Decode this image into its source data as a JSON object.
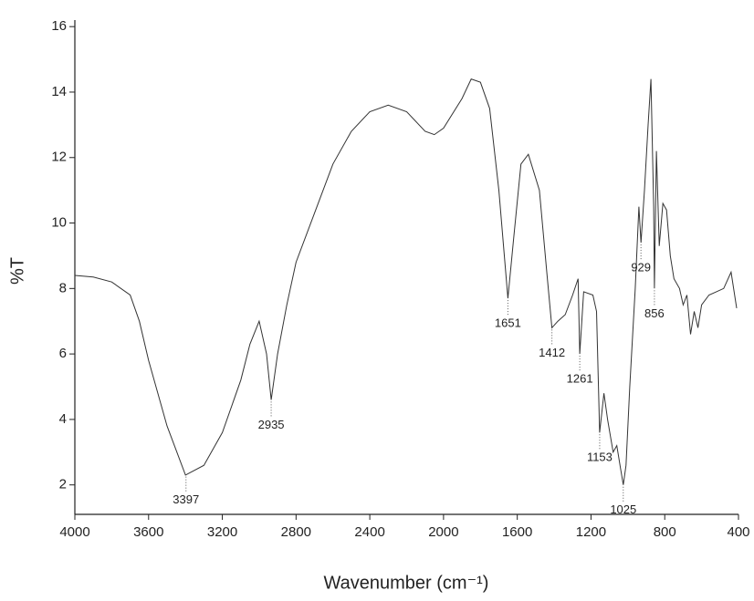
{
  "chart_data": {
    "type": "line",
    "xlabel": "Wavenumber (cm⁻¹)",
    "ylabel": "%T",
    "color": "#333333",
    "x": [
      4000,
      3900,
      3800,
      3700,
      3650,
      3600,
      3500,
      3400,
      3300,
      3200,
      3100,
      3050,
      3000,
      2960,
      2935,
      2900,
      2850,
      2800,
      2700,
      2600,
      2500,
      2400,
      2300,
      2200,
      2100,
      2050,
      2000,
      1900,
      1850,
      1800,
      1750,
      1700,
      1670,
      1651,
      1620,
      1580,
      1540,
      1480,
      1440,
      1412,
      1380,
      1340,
      1300,
      1270,
      1261,
      1240,
      1190,
      1170,
      1153,
      1130,
      1110,
      1080,
      1060,
      1040,
      1025,
      1010,
      990,
      960,
      940,
      929,
      910,
      890,
      875,
      860,
      856,
      845,
      830,
      810,
      790,
      770,
      750,
      720,
      700,
      680,
      660,
      640,
      620,
      600,
      560,
      520,
      480,
      440,
      410
    ],
    "values": [
      8.4,
      8.35,
      8.2,
      7.8,
      7.0,
      5.8,
      3.8,
      2.3,
      2.6,
      3.6,
      5.2,
      6.3,
      7.0,
      6.0,
      4.6,
      6.0,
      7.5,
      8.8,
      10.3,
      11.8,
      12.8,
      13.4,
      13.6,
      13.4,
      12.8,
      12.7,
      12.9,
      13.8,
      14.4,
      14.3,
      13.5,
      11.0,
      9.0,
      7.7,
      9.5,
      11.8,
      12.1,
      11.0,
      8.5,
      6.8,
      7.0,
      7.2,
      7.8,
      8.3,
      6.0,
      7.9,
      7.8,
      7.3,
      3.6,
      4.8,
      4.0,
      3.0,
      3.2,
      2.5,
      2.0,
      2.6,
      5.0,
      8.0,
      10.5,
      9.4,
      11.0,
      13.0,
      14.4,
      10.5,
      8.0,
      12.2,
      9.3,
      10.6,
      10.4,
      9.0,
      8.3,
      8.0,
      7.5,
      7.8,
      6.6,
      7.3,
      6.8,
      7.5,
      7.8,
      7.9,
      8.0,
      8.5,
      7.4
    ],
    "xlim": [
      4000,
      400
    ],
    "xticks": [
      4000,
      3600,
      3200,
      2800,
      2400,
      2000,
      1600,
      1200,
      800,
      400
    ],
    "ylim": [
      1.1,
      16.2
    ],
    "yticks": [
      2,
      4,
      6,
      8,
      10,
      12,
      14,
      16
    ],
    "annotations": [
      {
        "text": "3397",
        "x": 3397
      },
      {
        "text": "2935",
        "x": 2935
      },
      {
        "text": "1651",
        "x": 1651
      },
      {
        "text": "1412",
        "x": 1412
      },
      {
        "text": "1261",
        "x": 1261
      },
      {
        "text": "1153",
        "x": 1153
      },
      {
        "text": "1025",
        "x": 1025
      },
      {
        "text": "929",
        "x": 929
      },
      {
        "text": "856",
        "x": 856
      }
    ]
  }
}
